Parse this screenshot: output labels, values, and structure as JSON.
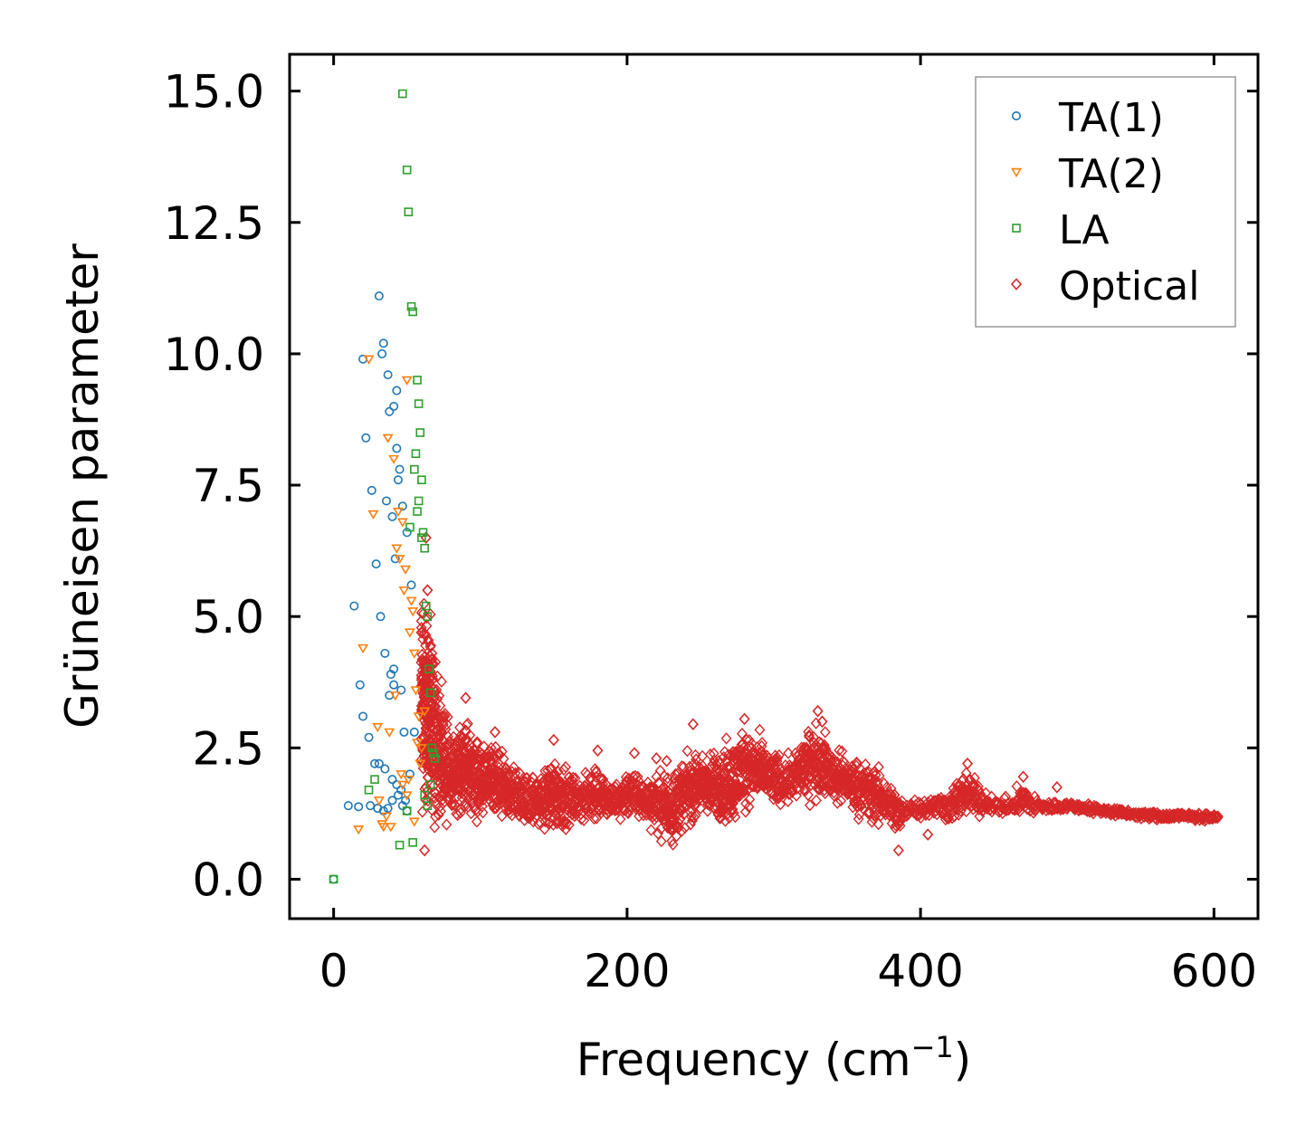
{
  "chart_data": {
    "type": "scatter",
    "title": "",
    "xlabel": "Frequency (cm",
    "xlabel_sup": "−1",
    "xlabel_close": ")",
    "ylabel": "Grüneisen parameter",
    "xlim": [
      -30,
      630
    ],
    "ylim": [
      -0.75,
      15.7
    ],
    "xticks": [
      "0",
      "200",
      "400",
      "600"
    ],
    "yticks": [
      "0.0",
      "2.5",
      "5.0",
      "7.5",
      "10.0",
      "12.5",
      "15.0"
    ],
    "legend_position": "top-right",
    "series": [
      {
        "name": "TA(1)",
        "marker": "circle",
        "color": "#1f77b4",
        "x": [
          0,
          10,
          17,
          20,
          24,
          28,
          30,
          31,
          34,
          38,
          41,
          43,
          45,
          47,
          50,
          53,
          55,
          14,
          18,
          22,
          26,
          29,
          32,
          35,
          39,
          42,
          46,
          48,
          52,
          20,
          25,
          30,
          34,
          37,
          40,
          44,
          47,
          50,
          31,
          35,
          40,
          43,
          46,
          49,
          38,
          41,
          44,
          36,
          40,
          43,
          33,
          37,
          41
        ],
        "y": [
          0.0,
          1.4,
          1.38,
          3.1,
          2.7,
          2.2,
          1.35,
          11.1,
          10.2,
          8.9,
          9.0,
          9.3,
          7.8,
          7.1,
          6.6,
          5.6,
          2.8,
          5.2,
          3.7,
          8.4,
          7.4,
          6.0,
          5.0,
          4.3,
          3.9,
          6.1,
          3.6,
          2.8,
          2.0,
          9.9,
          1.4,
          1.35,
          1.3,
          1.35,
          1.5,
          1.6,
          1.4,
          1.3,
          2.2,
          2.1,
          1.9,
          1.8,
          1.7,
          1.5,
          3.5,
          4.0,
          7.6,
          7.2,
          6.9,
          8.2,
          10.0,
          9.6,
          3.7
        ]
      },
      {
        "name": "TA(2)",
        "marker": "triangle-down",
        "color": "#ff7f0e",
        "x": [
          17,
          20,
          27,
          30,
          34,
          37,
          41,
          44,
          47,
          50,
          53,
          56,
          59,
          62,
          31,
          36,
          43,
          48,
          52,
          55,
          58,
          45,
          49,
          54,
          57,
          33,
          39,
          46,
          51,
          42,
          38,
          47,
          50,
          55,
          60,
          24
        ],
        "y": [
          0.95,
          4.4,
          6.95,
          2.9,
          1.0,
          8.4,
          8.0,
          7.0,
          6.8,
          9.5,
          5.3,
          3.6,
          2.2,
          3.2,
          1.5,
          1.2,
          6.3,
          5.5,
          4.7,
          4.3,
          3.1,
          6.1,
          5.9,
          5.1,
          2.6,
          1.05,
          1.0,
          2.0,
          1.9,
          3.5,
          2.8,
          1.8,
          1.6,
          1.1,
          2.5,
          9.9
        ]
      },
      {
        "name": "LA",
        "marker": "square",
        "color": "#2ca02c",
        "x": [
          0,
          24,
          28,
          47,
          50,
          51,
          53,
          54,
          57,
          58,
          59,
          60,
          61,
          62,
          63,
          64,
          65,
          66,
          67,
          68,
          69,
          55,
          45,
          52,
          56,
          58,
          60,
          62,
          64,
          66,
          50,
          54,
          57
        ],
        "y": [
          0.0,
          1.7,
          1.9,
          14.95,
          13.5,
          12.7,
          10.9,
          10.8,
          9.5,
          9.05,
          8.5,
          7.6,
          6.6,
          6.3,
          5.2,
          5.0,
          4.0,
          3.55,
          2.5,
          2.4,
          2.3,
          7.8,
          0.65,
          6.7,
          8.1,
          7.2,
          6.5,
          1.6,
          1.4,
          1.8,
          1.3,
          0.7,
          7.0
        ]
      },
      {
        "name": "Optical",
        "marker": "diamond",
        "color": "#d62728",
        "band": [
          [
            60,
            0.6,
            6.5
          ],
          [
            70,
            0.8,
            4.5
          ],
          [
            80,
            0.85,
            3.0
          ],
          [
            90,
            0.9,
            3.45
          ],
          [
            100,
            0.9,
            2.8
          ],
          [
            110,
            0.85,
            2.75
          ],
          [
            120,
            0.9,
            2.4
          ],
          [
            130,
            0.9,
            2.2
          ],
          [
            140,
            0.8,
            2.1
          ],
          [
            150,
            0.65,
            2.65
          ],
          [
            160,
            0.85,
            2.2
          ],
          [
            170,
            0.95,
            2.05
          ],
          [
            180,
            0.9,
            2.45
          ],
          [
            190,
            0.95,
            1.9
          ],
          [
            200,
            1.0,
            2.3
          ],
          [
            210,
            0.95,
            2.1
          ],
          [
            220,
            0.75,
            2.2
          ],
          [
            230,
            0.4,
            2.3
          ],
          [
            240,
            0.8,
            2.5
          ],
          [
            250,
            1.0,
            2.6
          ],
          [
            260,
            0.9,
            2.6
          ],
          [
            270,
            0.7,
            2.9
          ],
          [
            280,
            1.2,
            3.05
          ],
          [
            290,
            1.25,
            2.9
          ],
          [
            300,
            1.2,
            2.6
          ],
          [
            310,
            1.3,
            2.5
          ],
          [
            320,
            1.3,
            2.9
          ],
          [
            330,
            1.35,
            3.2
          ],
          [
            340,
            1.3,
            2.7
          ],
          [
            350,
            1.2,
            2.5
          ],
          [
            360,
            1.0,
            2.45
          ],
          [
            370,
            0.8,
            2.3
          ],
          [
            380,
            0.9,
            2.0
          ],
          [
            385,
            0.55,
            1.8
          ],
          [
            390,
            1.1,
            1.6
          ],
          [
            400,
            1.1,
            1.65
          ],
          [
            410,
            1.05,
            1.7
          ],
          [
            420,
            1.0,
            1.8
          ],
          [
            430,
            1.0,
            2.25
          ],
          [
            440,
            1.1,
            1.95
          ],
          [
            450,
            1.2,
            1.6
          ],
          [
            460,
            1.15,
            1.6
          ],
          [
            470,
            1.1,
            1.95
          ],
          [
            480,
            1.15,
            1.6
          ],
          [
            490,
            1.25,
            1.5
          ],
          [
            500,
            1.3,
            1.5
          ],
          [
            520,
            1.2,
            1.45
          ],
          [
            540,
            1.15,
            1.35
          ],
          [
            560,
            1.1,
            1.3
          ],
          [
            580,
            1.1,
            1.3
          ],
          [
            600,
            1.1,
            1.25
          ],
          [
            603,
            1.15,
            1.2
          ]
        ],
        "outliers_x": [
          62,
          63,
          64,
          67,
          68,
          90,
          110,
          150,
          180,
          205,
          220,
          227,
          245,
          280,
          330,
          333,
          385,
          405,
          432,
          470,
          493
        ],
        "outliers_y": [
          0.55,
          6.5,
          5.5,
          4.3,
          4.1,
          3.45,
          2.8,
          2.65,
          2.45,
          2.4,
          2.3,
          2.25,
          2.95,
          3.05,
          3.2,
          3.0,
          0.55,
          0.85,
          2.2,
          1.95,
          1.75
        ]
      }
    ]
  }
}
